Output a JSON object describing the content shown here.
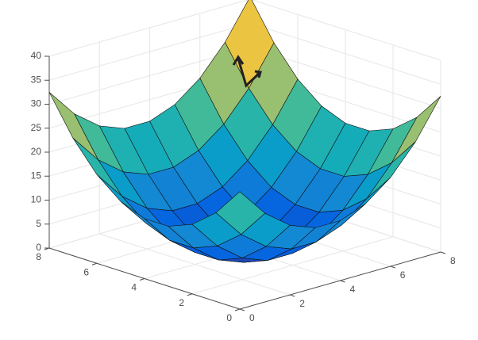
{
  "chart_data": {
    "type": "surface",
    "x": [
      0,
      1,
      2,
      3,
      4,
      5,
      6,
      7,
      8
    ],
    "y": [
      0,
      1,
      2,
      3,
      4,
      5,
      6,
      7,
      8
    ],
    "z": [
      [
        24.5,
        18.5,
        14.5,
        12.5,
        12.5,
        14.5,
        18.5,
        24.5,
        32.5
      ],
      [
        18.5,
        12.5,
        8.5,
        6.5,
        6.5,
        8.5,
        12.5,
        18.5,
        26.5
      ],
      [
        14.5,
        8.5,
        4.5,
        2.5,
        2.5,
        4.5,
        8.5,
        14.5,
        22.5
      ],
      [
        12.5,
        6.5,
        2.5,
        0.5,
        0.5,
        2.5,
        6.5,
        12.5,
        20.5
      ],
      [
        12.5,
        6.5,
        2.5,
        0.5,
        0.5,
        2.5,
        6.5,
        12.5,
        20.5
      ],
      [
        14.5,
        8.5,
        4.5,
        2.5,
        2.5,
        4.5,
        8.5,
        14.5,
        22.5
      ],
      [
        18.5,
        12.5,
        8.5,
        6.5,
        6.5,
        8.5,
        12.5,
        18.5,
        26.5
      ],
      [
        24.5,
        18.5,
        14.5,
        12.5,
        12.5,
        14.5,
        18.5,
        24.5,
        32.5
      ],
      [
        32.5,
        26.5,
        22.5,
        20.5,
        20.5,
        22.5,
        26.5,
        32.5,
        40.5
      ]
    ],
    "xlim": [
      0,
      8
    ],
    "ylim": [
      0,
      8
    ],
    "zlim": [
      0,
      40
    ],
    "xticks": [
      0,
      2,
      4,
      6,
      8
    ],
    "yticks": [
      0,
      2,
      4,
      6,
      8
    ],
    "zticks": [
      0,
      5,
      10,
      15,
      20,
      25,
      30,
      35,
      40
    ],
    "grid": true,
    "colormap": [
      "#352a87",
      "#0363e1",
      "#1485d4",
      "#06a7c6",
      "#38b99e",
      "#92bf73",
      "#d9ba56",
      "#fcce2e",
      "#f9fb0e"
    ]
  }
}
